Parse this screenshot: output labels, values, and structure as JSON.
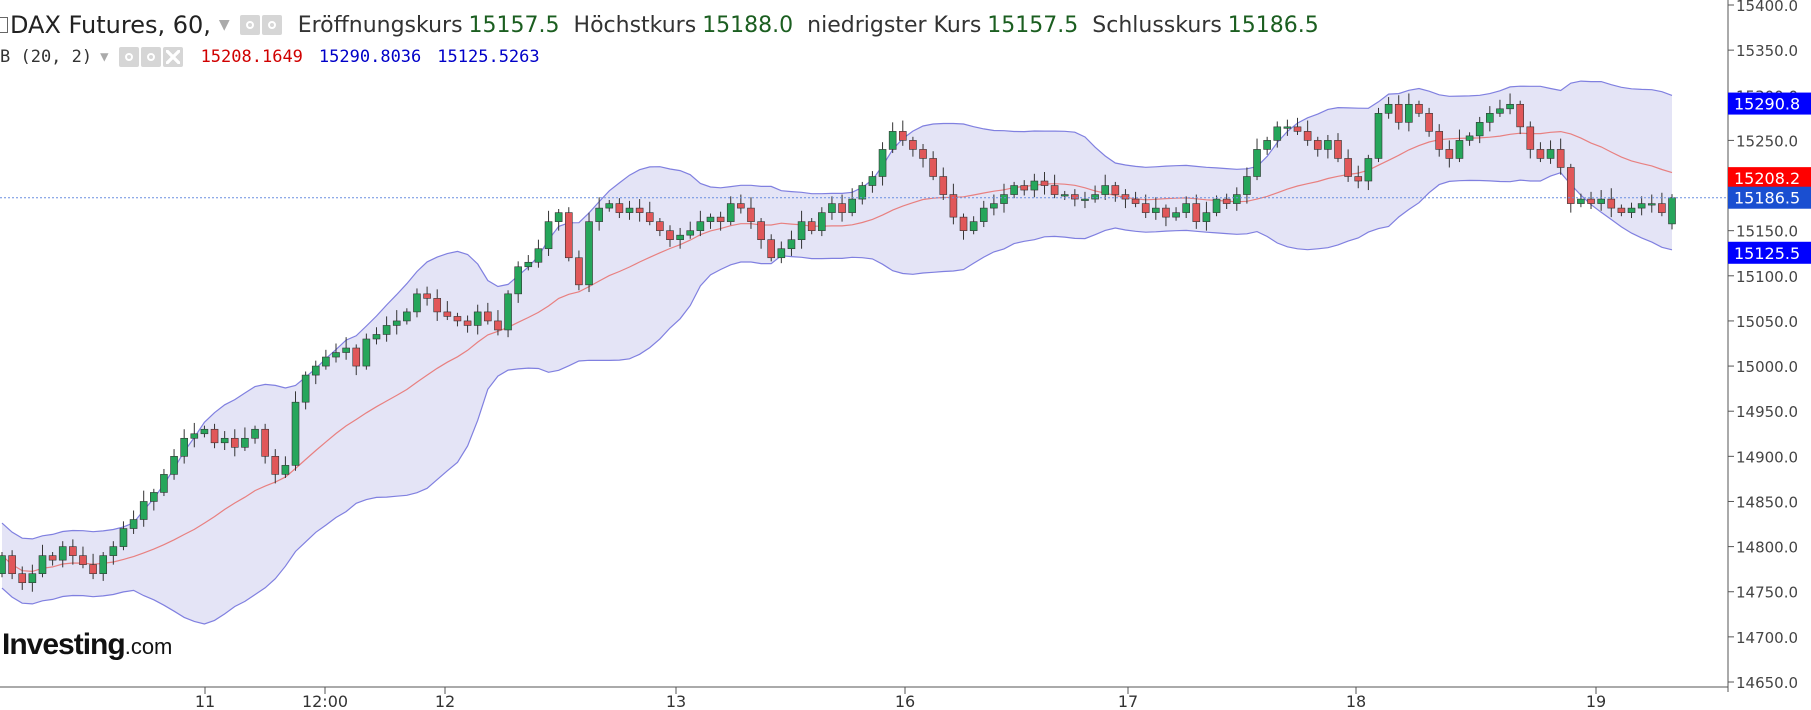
{
  "header": {
    "title": "DAX Futures, 60,",
    "open_label": "Eröffnungskurs",
    "open_value": "15157.5",
    "high_label": "Höchstkurs",
    "high_value": "15188.0",
    "low_label": "niedrigster Kurs",
    "low_value": "15157.5",
    "close_label": "Schlusskurs",
    "close_value": "15186.5"
  },
  "indicator": {
    "name": "B (20, 2)",
    "middle": "15208.1649",
    "upper": "15290.8036",
    "lower": "15125.5263"
  },
  "logo": {
    "main": "Investing",
    "suffix": ".com"
  },
  "colors": {
    "up": "#26a65b",
    "down": "#e15759",
    "band": "#8080e0",
    "band_fill": "#e4e4f6",
    "mid": "#e88080"
  },
  "chart_data": {
    "type": "candlestick",
    "title": "DAX Futures, 60,",
    "ylim": [
      14650,
      15400
    ],
    "yticks": [
      14650,
      14700,
      14750,
      14800,
      14850,
      14900,
      14950,
      15000,
      15050,
      15100,
      15150,
      15200,
      15250,
      15300,
      15350,
      15400
    ],
    "xticks": [
      "11",
      "12:00",
      "12",
      "13",
      "16",
      "17",
      "18",
      "19"
    ],
    "price_badges": [
      {
        "value": "15290.8",
        "color": "#0000ff"
      },
      {
        "value": "15208.2",
        "color": "#ff0000"
      },
      {
        "value": "15186.5",
        "color": "#1a4fd1"
      },
      {
        "value": "15125.5",
        "color": "#0000ff"
      }
    ],
    "close": [
      14790,
      14770,
      14760,
      14770,
      14790,
      14785,
      14800,
      14790,
      14780,
      14770,
      14790,
      14800,
      14820,
      14830,
      14850,
      14860,
      14880,
      14900,
      14920,
      14925,
      14930,
      14915,
      14920,
      14910,
      14920,
      14930,
      14900,
      14880,
      14890,
      14960,
      14990,
      15000,
      15010,
      15015,
      15020,
      15000,
      15030,
      15035,
      15045,
      15050,
      15060,
      15080,
      15075,
      15060,
      15055,
      15050,
      15045,
      15060,
      15050,
      15040,
      15080,
      15110,
      15115,
      15130,
      15160,
      15170,
      15120,
      15090,
      15160,
      15175,
      15180,
      15170,
      15175,
      15170,
      15160,
      15150,
      15140,
      15145,
      15150,
      15160,
      15165,
      15160,
      15180,
      15175,
      15160,
      15140,
      15120,
      15130,
      15140,
      15160,
      15150,
      15170,
      15180,
      15170,
      15185,
      15200,
      15210,
      15240,
      15260,
      15250,
      15240,
      15230,
      15210,
      15190,
      15165,
      15150,
      15160,
      15175,
      15180,
      15190,
      15200,
      15195,
      15205,
      15200,
      15190,
      15190,
      15185,
      15185,
      15190,
      15200,
      15190,
      15185,
      15180,
      15170,
      15175,
      15165,
      15170,
      15180,
      15160,
      15170,
      15185,
      15180,
      15190,
      15210,
      15240,
      15250,
      15265,
      15265,
      15260,
      15250,
      15240,
      15250,
      15230,
      15210,
      15205,
      15230,
      15280,
      15290,
      15270,
      15290,
      15280,
      15260,
      15240,
      15230,
      15250,
      15255,
      15270,
      15280,
      15285,
      15290,
      15265,
      15240,
      15230,
      15240,
      15220,
      15180,
      15185,
      15180,
      15185,
      15175,
      15170,
      15175,
      15180,
      15180,
      15170,
      15186.5
    ],
    "open": [
      14770,
      14790,
      14770,
      14760,
      14770,
      14790,
      14785,
      14800,
      14790,
      14780,
      14770,
      14790,
      14800,
      14820,
      14830,
      14850,
      14860,
      14880,
      14900,
      14920,
      14925,
      14930,
      14915,
      14920,
      14910,
      14920,
      14930,
      14900,
      14880,
      14890,
      14960,
      14990,
      15000,
      15010,
      15015,
      15020,
      15000,
      15030,
      15035,
      15045,
      15050,
      15060,
      15080,
      15075,
      15060,
      15055,
      15050,
      15045,
      15060,
      15050,
      15040,
      15080,
      15110,
      15115,
      15130,
      15160,
      15170,
      15120,
      15090,
      15160,
      15175,
      15180,
      15170,
      15175,
      15170,
      15160,
      15150,
      15140,
      15145,
      15150,
      15160,
      15165,
      15160,
      15180,
      15175,
      15160,
      15140,
      15120,
      15130,
      15140,
      15160,
      15150,
      15170,
      15180,
      15170,
      15185,
      15200,
      15210,
      15240,
      15260,
      15250,
      15240,
      15230,
      15210,
      15190,
      15165,
      15150,
      15160,
      15175,
      15180,
      15190,
      15200,
      15195,
      15205,
      15200,
      15190,
      15190,
      15185,
      15185,
      15190,
      15200,
      15190,
      15185,
      15180,
      15170,
      15175,
      15165,
      15170,
      15180,
      15160,
      15170,
      15185,
      15180,
      15190,
      15210,
      15240,
      15250,
      15265,
      15265,
      15260,
      15250,
      15240,
      15250,
      15230,
      15210,
      15205,
      15230,
      15280,
      15290,
      15270,
      15290,
      15280,
      15260,
      15240,
      15230,
      15250,
      15255,
      15270,
      15280,
      15285,
      15290,
      15265,
      15240,
      15230,
      15240,
      15220,
      15180,
      15185,
      15180,
      15185,
      15175,
      15170,
      15175,
      15180,
      15180,
      15157.5
    ]
  }
}
